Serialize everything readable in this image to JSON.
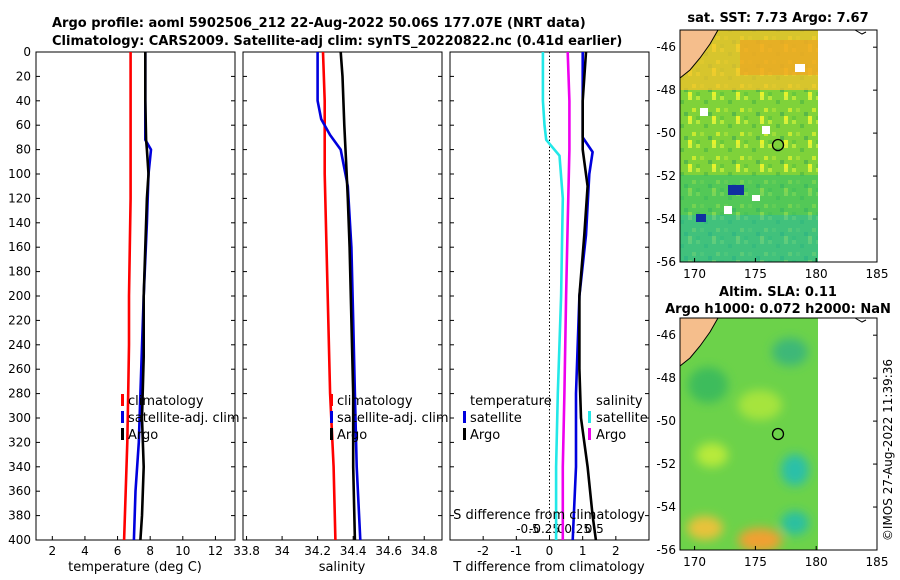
{
  "header": {
    "title_line1": "Argo profile: aoml 5902506_212 22-Aug-2022 50.06S 177.07E (NRT data)",
    "title_line2": "Climatology: CARS2009. Satellite-adj clim: synTS_20220822.nc (0.41d earlier)"
  },
  "colors": {
    "red": "#ff0000",
    "blue": "#0000dd",
    "black": "#000000",
    "cyan": "#22e8e8",
    "magenta": "#ee00ee"
  },
  "chart_data": [
    {
      "type": "line",
      "name": "temperature",
      "xlabel": "temperature (deg C)",
      "xlim": [
        1,
        13.2
      ],
      "ylim": [
        400,
        0
      ],
      "xticks": [
        2,
        4,
        6,
        8,
        10,
        12
      ],
      "yticks": [
        0,
        20,
        40,
        60,
        80,
        100,
        120,
        140,
        160,
        180,
        200,
        220,
        240,
        260,
        280,
        300,
        320,
        340,
        360,
        380,
        400
      ],
      "legend": [
        "climatology",
        "satellite-adj. clim",
        "Argo"
      ],
      "series": [
        {
          "name": "climatology",
          "color": "red",
          "points": [
            [
              6.8,
              0
            ],
            [
              6.8,
              40
            ],
            [
              6.8,
              80
            ],
            [
              6.8,
              120
            ],
            [
              6.75,
              160
            ],
            [
              6.7,
              200
            ],
            [
              6.7,
              240
            ],
            [
              6.65,
              280
            ],
            [
              6.6,
              320
            ],
            [
              6.5,
              360
            ],
            [
              6.4,
              400
            ]
          ]
        },
        {
          "name": "satellite-adj. clim",
          "color": "blue",
          "points": [
            [
              7.7,
              0
            ],
            [
              7.7,
              40
            ],
            [
              7.7,
              72
            ],
            [
              8.05,
              80
            ],
            [
              7.9,
              100
            ],
            [
              7.8,
              140
            ],
            [
              7.6,
              200
            ],
            [
              7.4,
              280
            ],
            [
              7.3,
              320
            ],
            [
              7.1,
              360
            ],
            [
              7.0,
              400
            ]
          ]
        },
        {
          "name": "Argo",
          "color": "black",
          "points": [
            [
              7.7,
              0
            ],
            [
              7.7,
              40
            ],
            [
              7.75,
              72
            ],
            [
              7.8,
              80
            ],
            [
              7.9,
              100
            ],
            [
              7.8,
              120
            ],
            [
              7.7,
              160
            ],
            [
              7.6,
              200
            ],
            [
              7.6,
              250
            ],
            [
              7.5,
              300
            ],
            [
              7.6,
              340
            ],
            [
              7.5,
              380
            ],
            [
              7.4,
              400
            ]
          ]
        }
      ]
    },
    {
      "type": "line",
      "name": "salinity",
      "xlabel": "salinity",
      "xlim": [
        33.78,
        34.9
      ],
      "ylim": [
        400,
        0
      ],
      "xticks": [
        33.8,
        34,
        34.2,
        34.4,
        34.6,
        34.8
      ],
      "legend": [
        "climatology",
        "satellite-adj. clim",
        "Argo"
      ],
      "series": [
        {
          "name": "climatology",
          "color": "red",
          "points": [
            [
              34.23,
              0
            ],
            [
              34.24,
              40
            ],
            [
              34.24,
              100
            ],
            [
              34.25,
              160
            ],
            [
              34.26,
              220
            ],
            [
              34.27,
              280
            ],
            [
              34.29,
              340
            ],
            [
              34.3,
              400
            ]
          ]
        },
        {
          "name": "satellite-adj. clim",
          "color": "blue",
          "points": [
            [
              34.2,
              0
            ],
            [
              34.2,
              40
            ],
            [
              34.22,
              55
            ],
            [
              34.27,
              68
            ],
            [
              34.33,
              80
            ],
            [
              34.37,
              110
            ],
            [
              34.39,
              160
            ],
            [
              34.4,
              220
            ],
            [
              34.41,
              280
            ],
            [
              34.42,
              340
            ],
            [
              34.44,
              400
            ]
          ]
        },
        {
          "name": "Argo",
          "color": "black",
          "points": [
            [
              34.33,
              0
            ],
            [
              34.34,
              20
            ],
            [
              34.35,
              60
            ],
            [
              34.36,
              90
            ],
            [
              34.37,
              120
            ],
            [
              34.38,
              160
            ],
            [
              34.39,
              220
            ],
            [
              34.4,
              280
            ],
            [
              34.4,
              340
            ],
            [
              34.41,
              400
            ]
          ]
        }
      ]
    },
    {
      "type": "line",
      "name": "difference",
      "xlabel": "T difference from climatology",
      "xlabel_top": "S difference from climatology",
      "xlim": [
        -3,
        3
      ],
      "ylim": [
        400,
        0
      ],
      "xticks": [
        -2,
        -1,
        0,
        1,
        2
      ],
      "xticks_top": [
        -0.5,
        -0.25,
        0,
        0.25,
        0.5
      ],
      "legend_left_title": "temperature",
      "legend_right_title": "salinity",
      "legend": [
        "satellite",
        "Argo"
      ],
      "series": [
        {
          "name": "temperature satellite",
          "color": "blue",
          "points": [
            [
              1.0,
              0
            ],
            [
              1.0,
              40
            ],
            [
              1.0,
              70
            ],
            [
              1.3,
              82
            ],
            [
              1.2,
              100
            ],
            [
              1.1,
              150
            ],
            [
              0.9,
              200
            ],
            [
              0.8,
              280
            ],
            [
              0.8,
              340
            ],
            [
              0.7,
              400
            ]
          ]
        },
        {
          "name": "temperature Argo",
          "color": "black",
          "points": [
            [
              1.1,
              0
            ],
            [
              1.0,
              40
            ],
            [
              1.0,
              80
            ],
            [
              1.15,
              110
            ],
            [
              1.05,
              150
            ],
            [
              0.9,
              200
            ],
            [
              0.9,
              260
            ],
            [
              0.95,
              300
            ],
            [
              1.15,
              340
            ],
            [
              1.3,
              380
            ],
            [
              1.4,
              400
            ]
          ]
        },
        {
          "name": "salinity satellite",
          "color": "cyan",
          "points": [
            [
              -0.2,
              0
            ],
            [
              -0.2,
              40
            ],
            [
              -0.15,
              60
            ],
            [
              -0.1,
              72
            ],
            [
              0.3,
              85
            ],
            [
              0.4,
              120
            ],
            [
              0.35,
              200
            ],
            [
              0.25,
              280
            ],
            [
              0.2,
              340
            ],
            [
              0.2,
              400
            ]
          ]
        },
        {
          "name": "salinity Argo",
          "color": "magenta",
          "points": [
            [
              0.55,
              0
            ],
            [
              0.6,
              40
            ],
            [
              0.6,
              80
            ],
            [
              0.55,
              140
            ],
            [
              0.5,
              200
            ],
            [
              0.45,
              280
            ],
            [
              0.4,
              340
            ],
            [
              0.4,
              400
            ]
          ]
        }
      ]
    }
  ],
  "maps": [
    {
      "title": "sat. SST: 7.73 Argo: 7.67",
      "yticks": [
        -46,
        -48,
        -50,
        -52,
        -54,
        -56
      ],
      "xticks": [
        170,
        175,
        180,
        185
      ]
    },
    {
      "title_line1": "Altim. SLA: 0.11",
      "title_line2": "Argo h1000: 0.072 h2000: NaN",
      "yticks": [
        -46,
        -48,
        -50,
        -52,
        -54,
        -56
      ],
      "xticks": [
        170,
        175,
        180,
        185
      ]
    }
  ],
  "footer": {
    "credit": "©IMOS 27-Aug-2022 11:39:36"
  }
}
